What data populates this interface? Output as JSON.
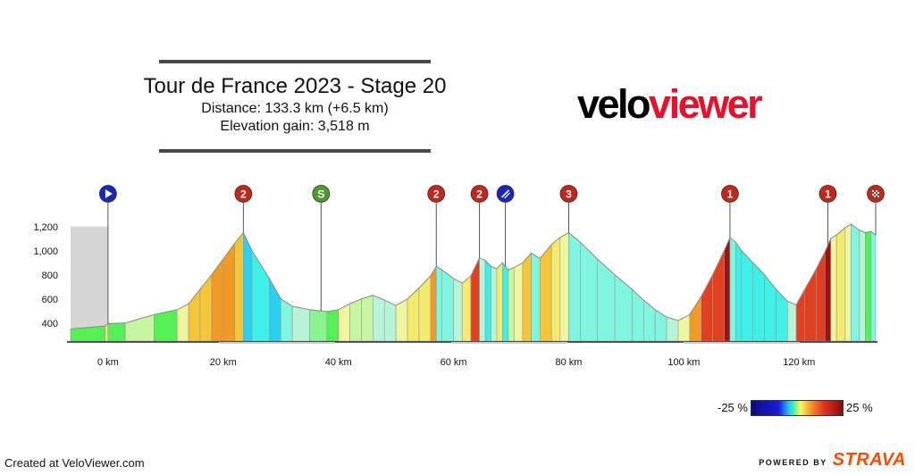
{
  "header": {
    "title": "Tour de France 2023 - Stage 20",
    "distance_line": "Distance: 133.3 km (+6.5 km)",
    "elevation_line": "Elevation gain: 3,518 m"
  },
  "logo": {
    "part1": "velo",
    "part2": "viewer",
    "colors": {
      "part1": "#000000",
      "part2": "#e8102a"
    }
  },
  "chart_data": {
    "type": "area",
    "x_unit": "km",
    "xlim": [
      -6.5,
      133.3
    ],
    "ylim": [
      250,
      1250
    ],
    "x_ticks": [
      0,
      20,
      40,
      60,
      80,
      100,
      120
    ],
    "x_tick_labels": [
      "0 km",
      "20 km",
      "40 km",
      "60 km",
      "80 km",
      "100 km",
      "120 km"
    ],
    "y_ticks": [
      400,
      600,
      800,
      1000,
      1200
    ],
    "y_tick_labels": [
      "400",
      "600",
      "800",
      "1,000",
      "1,200"
    ],
    "neutral_zone": [
      -6.5,
      0
    ],
    "profile": [
      [
        -6.5,
        350
      ],
      [
        -0.5,
        375
      ],
      [
        0,
        395
      ],
      [
        3,
        400
      ],
      [
        8,
        470
      ],
      [
        12,
        510
      ],
      [
        14,
        560
      ],
      [
        16,
        680
      ],
      [
        18,
        800
      ],
      [
        20,
        930
      ],
      [
        22,
        1060
      ],
      [
        23.5,
        1150
      ],
      [
        25,
        1000
      ],
      [
        28,
        770
      ],
      [
        30,
        600
      ],
      [
        32,
        540
      ],
      [
        35,
        510
      ],
      [
        38,
        495
      ],
      [
        40,
        510
      ],
      [
        42,
        560
      ],
      [
        44,
        600
      ],
      [
        46,
        630
      ],
      [
        48,
        590
      ],
      [
        50,
        545
      ],
      [
        52,
        600
      ],
      [
        54,
        690
      ],
      [
        56,
        790
      ],
      [
        57,
        870
      ],
      [
        58,
        840
      ],
      [
        60,
        770
      ],
      [
        61.5,
        730
      ],
      [
        63,
        790
      ],
      [
        64.5,
        940
      ],
      [
        65.5,
        920
      ],
      [
        66.5,
        870
      ],
      [
        67.5,
        850
      ],
      [
        68.5,
        900
      ],
      [
        69.5,
        840
      ],
      [
        70.5,
        860
      ],
      [
        72,
        900
      ],
      [
        73.5,
        980
      ],
      [
        75,
        935
      ],
      [
        77,
        1050
      ],
      [
        78.5,
        1110
      ],
      [
        80,
        1150
      ],
      [
        82,
        1070
      ],
      [
        85,
        930
      ],
      [
        88,
        800
      ],
      [
        91,
        680
      ],
      [
        93,
        590
      ],
      [
        95,
        510
      ],
      [
        97,
        450
      ],
      [
        99,
        420
      ],
      [
        101,
        470
      ],
      [
        103,
        620
      ],
      [
        105,
        800
      ],
      [
        107,
        1000
      ],
      [
        108,
        1110
      ],
      [
        109,
        1070
      ],
      [
        110,
        1000
      ],
      [
        112,
        900
      ],
      [
        114,
        800
      ],
      [
        116,
        680
      ],
      [
        118,
        580
      ],
      [
        119.5,
        550
      ],
      [
        121,
        680
      ],
      [
        123,
        850
      ],
      [
        124.5,
        990
      ],
      [
        125.5,
        1100
      ],
      [
        126.5,
        1130
      ],
      [
        128,
        1190
      ],
      [
        129,
        1220
      ],
      [
        130.5,
        1170
      ],
      [
        131.5,
        1150
      ],
      [
        132.5,
        1160
      ],
      [
        133.3,
        1130
      ]
    ],
    "markers": [
      {
        "label": "",
        "x": 0,
        "kind": "start",
        "icon": "start-flag-icon",
        "color": "#1a26b8"
      },
      {
        "label": "2",
        "x": 23.5,
        "kind": "climb",
        "color": "#c0281e"
      },
      {
        "label": "S",
        "x": 37,
        "kind": "sprint",
        "color": "#4e9a2e"
      },
      {
        "label": "2",
        "x": 57,
        "kind": "climb",
        "color": "#c0281e"
      },
      {
        "label": "2",
        "x": 64.5,
        "kind": "climb",
        "color": "#c0281e"
      },
      {
        "label": "",
        "x": 69,
        "kind": "feed",
        "icon": "feed-zone-icon",
        "color": "#1a26b8"
      },
      {
        "label": "3",
        "x": 80,
        "kind": "climb",
        "color": "#c0281e"
      },
      {
        "label": "1",
        "x": 108,
        "kind": "climb",
        "color": "#c0281e"
      },
      {
        "label": "1",
        "x": 125,
        "kind": "climb",
        "color": "#c0281e"
      },
      {
        "label": "",
        "x": 133.3,
        "kind": "finish",
        "icon": "finish-flag-icon",
        "color": "#c0281e"
      }
    ],
    "gradient_scale": {
      "min_label": "-25 %",
      "max_label": "25 %"
    }
  },
  "footer": {
    "created_text": "Created at VeloViewer.com",
    "powered_text": "POWERED BY",
    "brand_text": "STRAVA"
  }
}
